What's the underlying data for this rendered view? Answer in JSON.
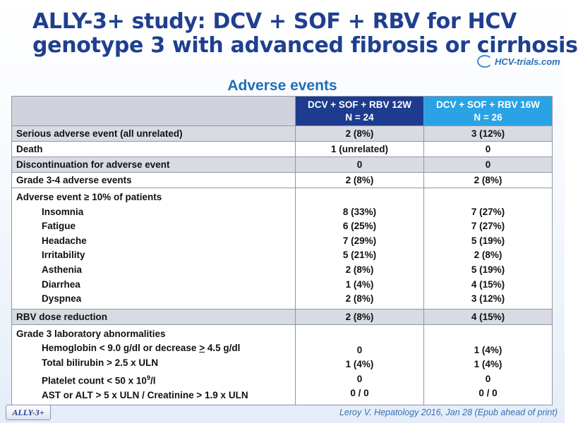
{
  "title": {
    "line1": "ALLY-3+ study: DCV + SOF + RBV for HCV",
    "line2": "genotype 3 with advanced fibrosis or cirrhosis"
  },
  "logo": {
    "text": "HCV-trials.com"
  },
  "subtitle": "Adverse events",
  "table": {
    "header": {
      "arm12_line1": "DCV + SOF + RBV 12W",
      "arm12_line2": "N = 24",
      "arm16_line1": "DCV + SOF + RBV 16W",
      "arm16_line2": "N = 26"
    },
    "rows": [
      {
        "label": "Serious adverse event (all unrelated)",
        "arm12": "2 (8%)",
        "arm16": "3 (12%)"
      },
      {
        "label": "Death",
        "arm12": "1 (unrelated)",
        "arm16": "0"
      },
      {
        "label": "Discontinuation for adverse event",
        "arm12": "0",
        "arm16": "0"
      },
      {
        "label": "Grade 3-4 adverse events",
        "arm12": "2 (8%)",
        "arm16": "2 (8%)"
      }
    ],
    "ae10": {
      "label": "Adverse event ≥ 10% of patients",
      "items": [
        {
          "label": "Insomnia",
          "arm12": "8 (33%)",
          "arm16": "7 (27%)"
        },
        {
          "label": "Fatigue",
          "arm12": "6 (25%)",
          "arm16": "7 (27%)"
        },
        {
          "label": "Headache",
          "arm12": "7 (29%)",
          "arm16": "5 (19%)"
        },
        {
          "label": "Irritability",
          "arm12": "5 (21%)",
          "arm16": "2 (8%)"
        },
        {
          "label": "Asthenia",
          "arm12": "2 (8%)",
          "arm16": "5 (19%)"
        },
        {
          "label": "Diarrhea",
          "arm12": "1 (4%)",
          "arm16": "4 (15%)"
        },
        {
          "label": "Dyspnea",
          "arm12": "2 (8%)",
          "arm16": "3 (12%)"
        }
      ]
    },
    "rbv": {
      "label": "RBV dose reduction",
      "arm12": "2 (8%)",
      "arm16": "4 (15%)"
    },
    "lab": {
      "label": "Grade 3 laboratory abnormalities",
      "items": [
        {
          "label_pre": "Hemoglobin < 9.0 g/dl or decrease ",
          "label_u": ">",
          "label_post": " 4.5 g/dl",
          "arm12": "0",
          "arm16": "1 (4%)"
        },
        {
          "label": "Total bilirubin > 2.5 x ULN",
          "arm12": "1 (4%)",
          "arm16": "1 (4%)"
        },
        {
          "label_pre": "Platelet count < 50 x 10",
          "label_sup": "9",
          "label_post": "/l",
          "arm12": "0",
          "arm16": "0"
        },
        {
          "label": "AST or ALT > 5 x ULN / Creatinine > 1.9 x ULN",
          "arm12": "0 / 0",
          "arm16": "0 / 0"
        }
      ]
    }
  },
  "footer": {
    "badge": "ALLY-3+",
    "citation": "Leroy V. Hepatology 2016, Jan 28 (Epub ahead of print)"
  },
  "colors": {
    "title": "#1f3f8f",
    "arm12_header": "#1d3c8f",
    "arm16_header": "#29a3e6",
    "shaded_row": "#d8dbe3"
  }
}
